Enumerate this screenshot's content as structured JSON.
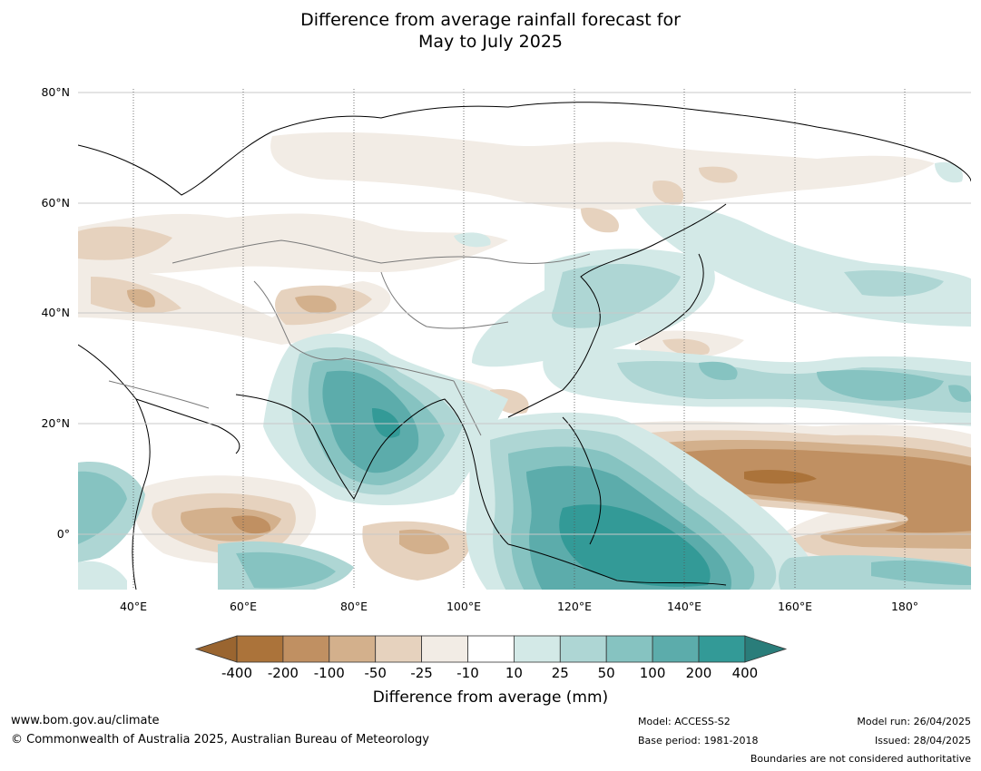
{
  "title": {
    "line1": "Difference from average rainfall forecast for",
    "line2": "May to July 2025"
  },
  "map": {
    "lat_labels": [
      "80°N",
      "60°N",
      "40°N",
      "20°N",
      "0°"
    ],
    "lon_labels": [
      "40°E",
      "60°E",
      "80°E",
      "100°E",
      "120°E",
      "140°E",
      "160°E",
      "180°"
    ],
    "extent": {
      "lon_min": 30,
      "lon_max": 191,
      "lat_min": -10,
      "lat_max": 81
    }
  },
  "legend": {
    "title": "Difference from average (mm)",
    "ticks": [
      "-400",
      "-200",
      "-100",
      "-50",
      "-25",
      "-10",
      "10",
      "25",
      "50",
      "100",
      "200",
      "400"
    ],
    "colors": [
      "#ab733a",
      "#c09062",
      "#d3b08c",
      "#e6d2be",
      "#f2ece5",
      "#ffffff",
      "#d3e9e7",
      "#aed6d4",
      "#86c3c1",
      "#5cacab",
      "#339a97"
    ],
    "under_color": "#9a6530",
    "over_color": "#2a7d7a"
  },
  "footer": {
    "website": "www.bom.gov.au/climate",
    "copyright": "© Commonwealth of Australia 2025, Australian Bureau of Meteorology",
    "model": "Model: ACCESS-S2",
    "base_period": "Base period: 1981-2018",
    "model_run": "Model run: 26/04/2025",
    "issued": "Issued: 28/04/2025",
    "disclaimer": "Boundaries are not considered authoritative"
  }
}
